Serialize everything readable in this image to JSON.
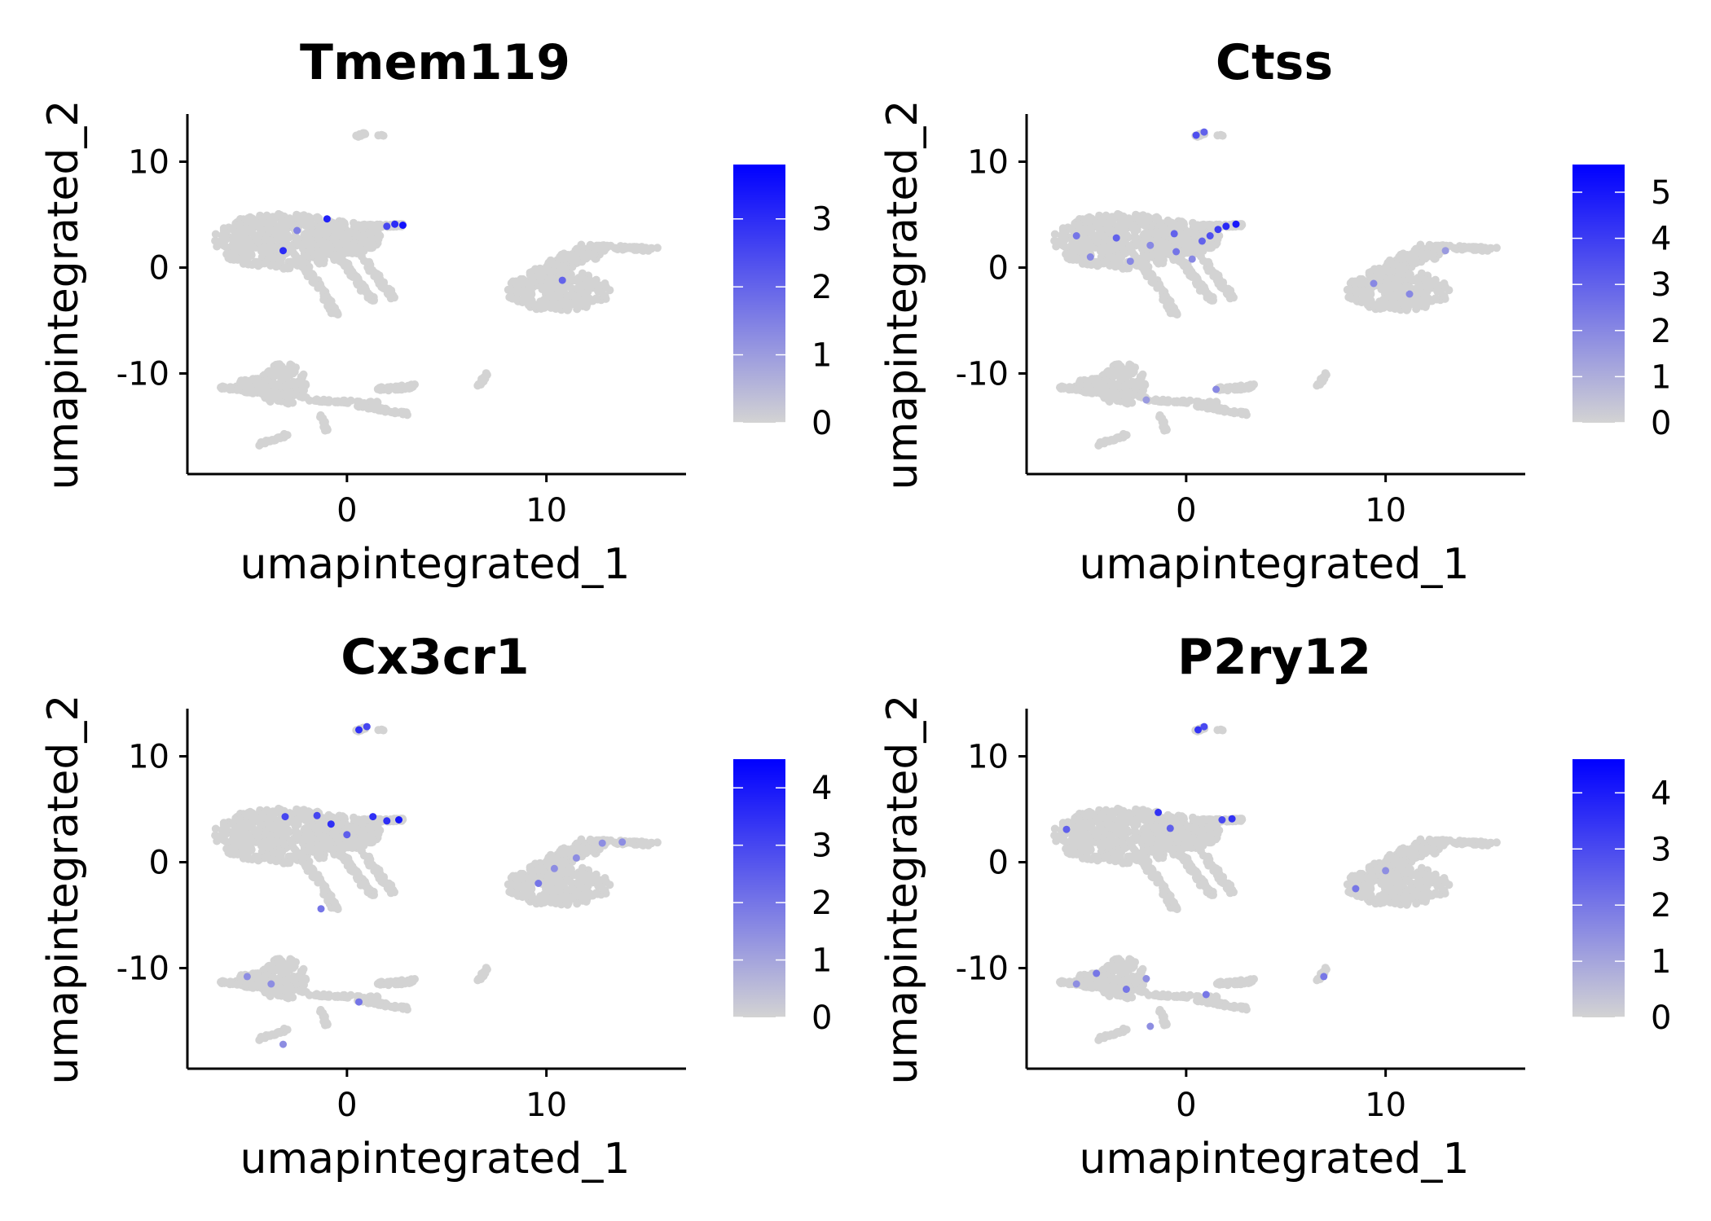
{
  "chart_data": [
    {
      "type": "scatter",
      "title": "Tmem119",
      "xlabel": "umapintegrated_1",
      "ylabel": "umapintegrated_2",
      "xlim": [
        -8,
        17
      ],
      "ylim": [
        -19.5,
        14.5
      ],
      "xticks": [
        "0",
        "10"
      ],
      "xtick_values": [
        0,
        10
      ],
      "yticks": [
        "10",
        "0",
        "-10"
      ],
      "ytick_values": [
        10,
        0,
        -10
      ],
      "colorbar": {
        "min": 0,
        "max": 3.8,
        "ticks": [
          "0",
          "1",
          "2",
          "3"
        ],
        "tick_values": [
          0,
          1,
          2,
          3
        ],
        "low_color": "#d3d3d3",
        "high_color": "#0000ff"
      },
      "highlight_points": [
        [
          2.8,
          4.0,
          3.5
        ],
        [
          2.4,
          4.1,
          3.0
        ],
        [
          2.0,
          3.9,
          2.5
        ],
        [
          -1.0,
          4.6,
          3.2
        ],
        [
          -3.2,
          1.6,
          3.0
        ],
        [
          -2.5,
          3.5,
          1.5
        ],
        [
          10.8,
          -1.2,
          2.0
        ]
      ]
    },
    {
      "type": "scatter",
      "title": "Ctss",
      "xlabel": "umapintegrated_1",
      "ylabel": "umapintegrated_2",
      "xlim": [
        -8,
        17
      ],
      "ylim": [
        -19.5,
        14.5
      ],
      "xticks": [
        "0",
        "10"
      ],
      "xtick_values": [
        0,
        10
      ],
      "yticks": [
        "10",
        "0",
        "-10"
      ],
      "ytick_values": [
        10,
        0,
        -10
      ],
      "colorbar": {
        "min": 0,
        "max": 5.6,
        "ticks": [
          "0",
          "1",
          "2",
          "3",
          "4",
          "5"
        ],
        "tick_values": [
          0,
          1,
          2,
          3,
          4,
          5
        ],
        "low_color": "#d3d3d3",
        "high_color": "#0000ff"
      },
      "highlight_points": [
        [
          2.5,
          4.1,
          5.0
        ],
        [
          2.0,
          3.9,
          4.5
        ],
        [
          1.6,
          3.6,
          4.0
        ],
        [
          1.2,
          3.0,
          3.5
        ],
        [
          0.8,
          2.5,
          3.0
        ],
        [
          -0.6,
          3.2,
          3.0
        ],
        [
          -1.8,
          2.1,
          2.0
        ],
        [
          -3.5,
          2.8,
          3.0
        ],
        [
          -5.5,
          3.0,
          2.5
        ],
        [
          -4.8,
          1.0,
          2.0
        ],
        [
          -2.8,
          0.6,
          2.0
        ],
        [
          -0.5,
          1.5,
          2.5
        ],
        [
          0.3,
          0.8,
          2.0
        ],
        [
          0.5,
          12.5,
          3.5
        ],
        [
          0.9,
          12.8,
          3.0
        ],
        [
          11.2,
          -2.5,
          2.0
        ],
        [
          9.4,
          -1.5,
          2.0
        ],
        [
          13.0,
          1.6,
          1.5
        ],
        [
          1.5,
          -11.5,
          2.0
        ],
        [
          -2.0,
          -12.5,
          1.5
        ]
      ]
    },
    {
      "type": "scatter",
      "title": "Cx3cr1",
      "xlabel": "umapintegrated_1",
      "ylabel": "umapintegrated_2",
      "xlim": [
        -8,
        17
      ],
      "ylim": [
        -19.5,
        14.5
      ],
      "xticks": [
        "0",
        "10"
      ],
      "xtick_values": [
        0,
        10
      ],
      "yticks": [
        "10",
        "0",
        "-10"
      ],
      "ytick_values": [
        10,
        0,
        -10
      ],
      "colorbar": {
        "min": 0,
        "max": 4.5,
        "ticks": [
          "0",
          "1",
          "2",
          "3",
          "4"
        ],
        "tick_values": [
          0,
          1,
          2,
          3,
          4
        ],
        "low_color": "#d3d3d3",
        "high_color": "#0000ff"
      },
      "highlight_points": [
        [
          2.6,
          4.0,
          4.0
        ],
        [
          2.0,
          3.9,
          3.5
        ],
        [
          1.3,
          4.3,
          3.5
        ],
        [
          -0.8,
          3.6,
          3.5
        ],
        [
          -1.5,
          4.4,
          3.0
        ],
        [
          -3.1,
          4.3,
          3.0
        ],
        [
          0.0,
          2.6,
          2.5
        ],
        [
          -1.3,
          -4.4,
          2.0
        ],
        [
          0.6,
          12.5,
          3.5
        ],
        [
          1.0,
          12.8,
          3.0
        ],
        [
          9.6,
          -2.0,
          2.0
        ],
        [
          10.4,
          -0.6,
          1.5
        ],
        [
          11.5,
          0.4,
          1.5
        ],
        [
          12.8,
          1.8,
          1.5
        ],
        [
          13.8,
          1.9,
          1.5
        ],
        [
          -5.0,
          -10.8,
          1.5
        ],
        [
          -3.8,
          -11.5,
          1.5
        ],
        [
          0.6,
          -13.2,
          2.0
        ],
        [
          -3.2,
          -17.2,
          1.5
        ]
      ]
    },
    {
      "type": "scatter",
      "title": "P2ry12",
      "xlabel": "umapintegrated_1",
      "ylabel": "umapintegrated_2",
      "xlim": [
        -8,
        17
      ],
      "ylim": [
        -19.5,
        14.5
      ],
      "xticks": [
        "0",
        "10"
      ],
      "xtick_values": [
        0,
        10
      ],
      "yticks": [
        "10",
        "0",
        "-10"
      ],
      "ytick_values": [
        10,
        0,
        -10
      ],
      "colorbar": {
        "min": 0,
        "max": 4.6,
        "ticks": [
          "0",
          "1",
          "2",
          "3",
          "4"
        ],
        "tick_values": [
          0,
          1,
          2,
          3,
          4
        ],
        "low_color": "#d3d3d3",
        "high_color": "#0000ff"
      },
      "highlight_points": [
        [
          2.3,
          4.1,
          3.5
        ],
        [
          1.8,
          4.0,
          3.0
        ],
        [
          -1.4,
          4.7,
          3.5
        ],
        [
          -0.8,
          3.2,
          2.5
        ],
        [
          -6.0,
          3.1,
          2.5
        ],
        [
          0.6,
          12.5,
          3.5
        ],
        [
          0.9,
          12.8,
          3.0
        ],
        [
          8.5,
          -2.5,
          2.0
        ],
        [
          10.0,
          -0.8,
          1.5
        ],
        [
          -4.5,
          -10.5,
          2.0
        ],
        [
          -3.0,
          -12.0,
          2.0
        ],
        [
          -2.0,
          -11.0,
          1.5
        ],
        [
          1.0,
          -12.5,
          2.0
        ],
        [
          -5.5,
          -11.5,
          1.5
        ],
        [
          6.9,
          -10.8,
          2.0
        ],
        [
          -1.8,
          -15.5,
          1.5
        ]
      ]
    }
  ]
}
